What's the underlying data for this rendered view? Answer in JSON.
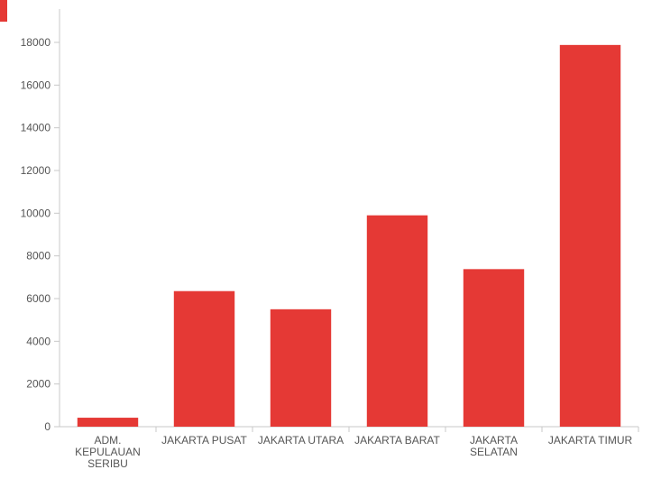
{
  "colors": {
    "bar": "#e53935",
    "axis": "#c8c8c8",
    "tick_text": "#555555",
    "corner_mark": "#e53935"
  },
  "chart_data": {
    "type": "bar",
    "title": "",
    "xlabel": "",
    "ylabel": "",
    "categories": [
      [
        "ADM.",
        "KEPULAUAN",
        "SERIBU"
      ],
      [
        "JAKARTA PUSAT"
      ],
      [
        "JAKARTA UTARA"
      ],
      [
        "JAKARTA BARAT"
      ],
      [
        "JAKARTA",
        "SELATAN"
      ],
      [
        "JAKARTA TIMUR"
      ]
    ],
    "values": [
      420,
      6350,
      5500,
      9900,
      7380,
      17880
    ],
    "ylim": [
      0,
      18000
    ],
    "yticks": [
      0,
      2000,
      4000,
      6000,
      8000,
      10000,
      12000,
      14000,
      16000,
      18000
    ],
    "grid": false,
    "legend": "none"
  }
}
